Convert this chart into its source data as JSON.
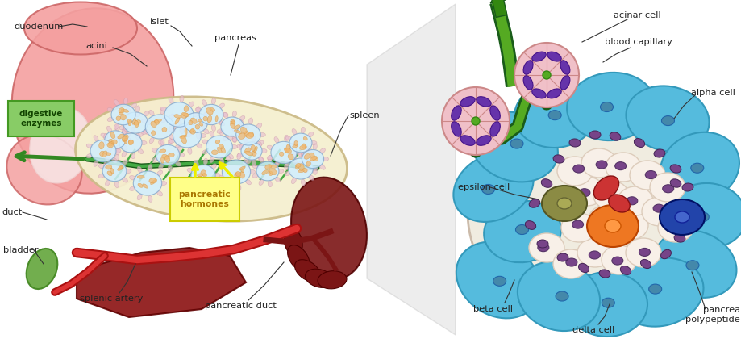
{
  "bg_color": "#ffffff",
  "title": "",
  "labels": {
    "bladder": "bladder",
    "duct": "duct",
    "splenic_artery": "splenic artery",
    "pancreatic_duct": "pancreatic duct",
    "pancreatic_hormones": "pancreatic\nhormones",
    "digestive_enzymes": "digestive\nenzymes",
    "duodenum": "duodenum",
    "acini": "acini",
    "islet": "islet",
    "pancreas": "pancreas",
    "spleen": "spleen",
    "beta_cell": "beta cell",
    "delta_cell": "delta cell",
    "pancrea_poly": "pancrea\npolypeptide",
    "epsilon_cell": "epsilon cell",
    "alpha_cell": "alpha cell",
    "blood_capillary": "blood capillary",
    "acinar_cell": "acinar cell"
  },
  "colors": {
    "bg_color": "#ffffff",
    "stomach_fill": "#f4a0a0",
    "stomach_edge": "#cc6666",
    "pancreas_fill": "#f5f0d0",
    "pancreas_edge": "#ccbb88",
    "gallbladder_fill": "#6aaa44",
    "islet_fill": "#d0eeff",
    "islet_edge": "#88aacc",
    "beta_cell_fill": "#55bbdd",
    "orange_cell_fill": "#ee7722",
    "blue_cell_fill": "#2244aa",
    "olive_cell_fill": "#8B8B44",
    "red_cell_fill": "#cc3333",
    "purple_nucleus": "#774488",
    "acinar_pink": "#f0c0c8",
    "acinar_edge": "#cc8888",
    "yellow_box_fill": "#ffff88",
    "yellow_box_edge": "#cccc00",
    "green_box_fill": "#88cc66",
    "green_box_edge": "#449922",
    "label_color": "#222222",
    "annotation_line": "#333333"
  }
}
